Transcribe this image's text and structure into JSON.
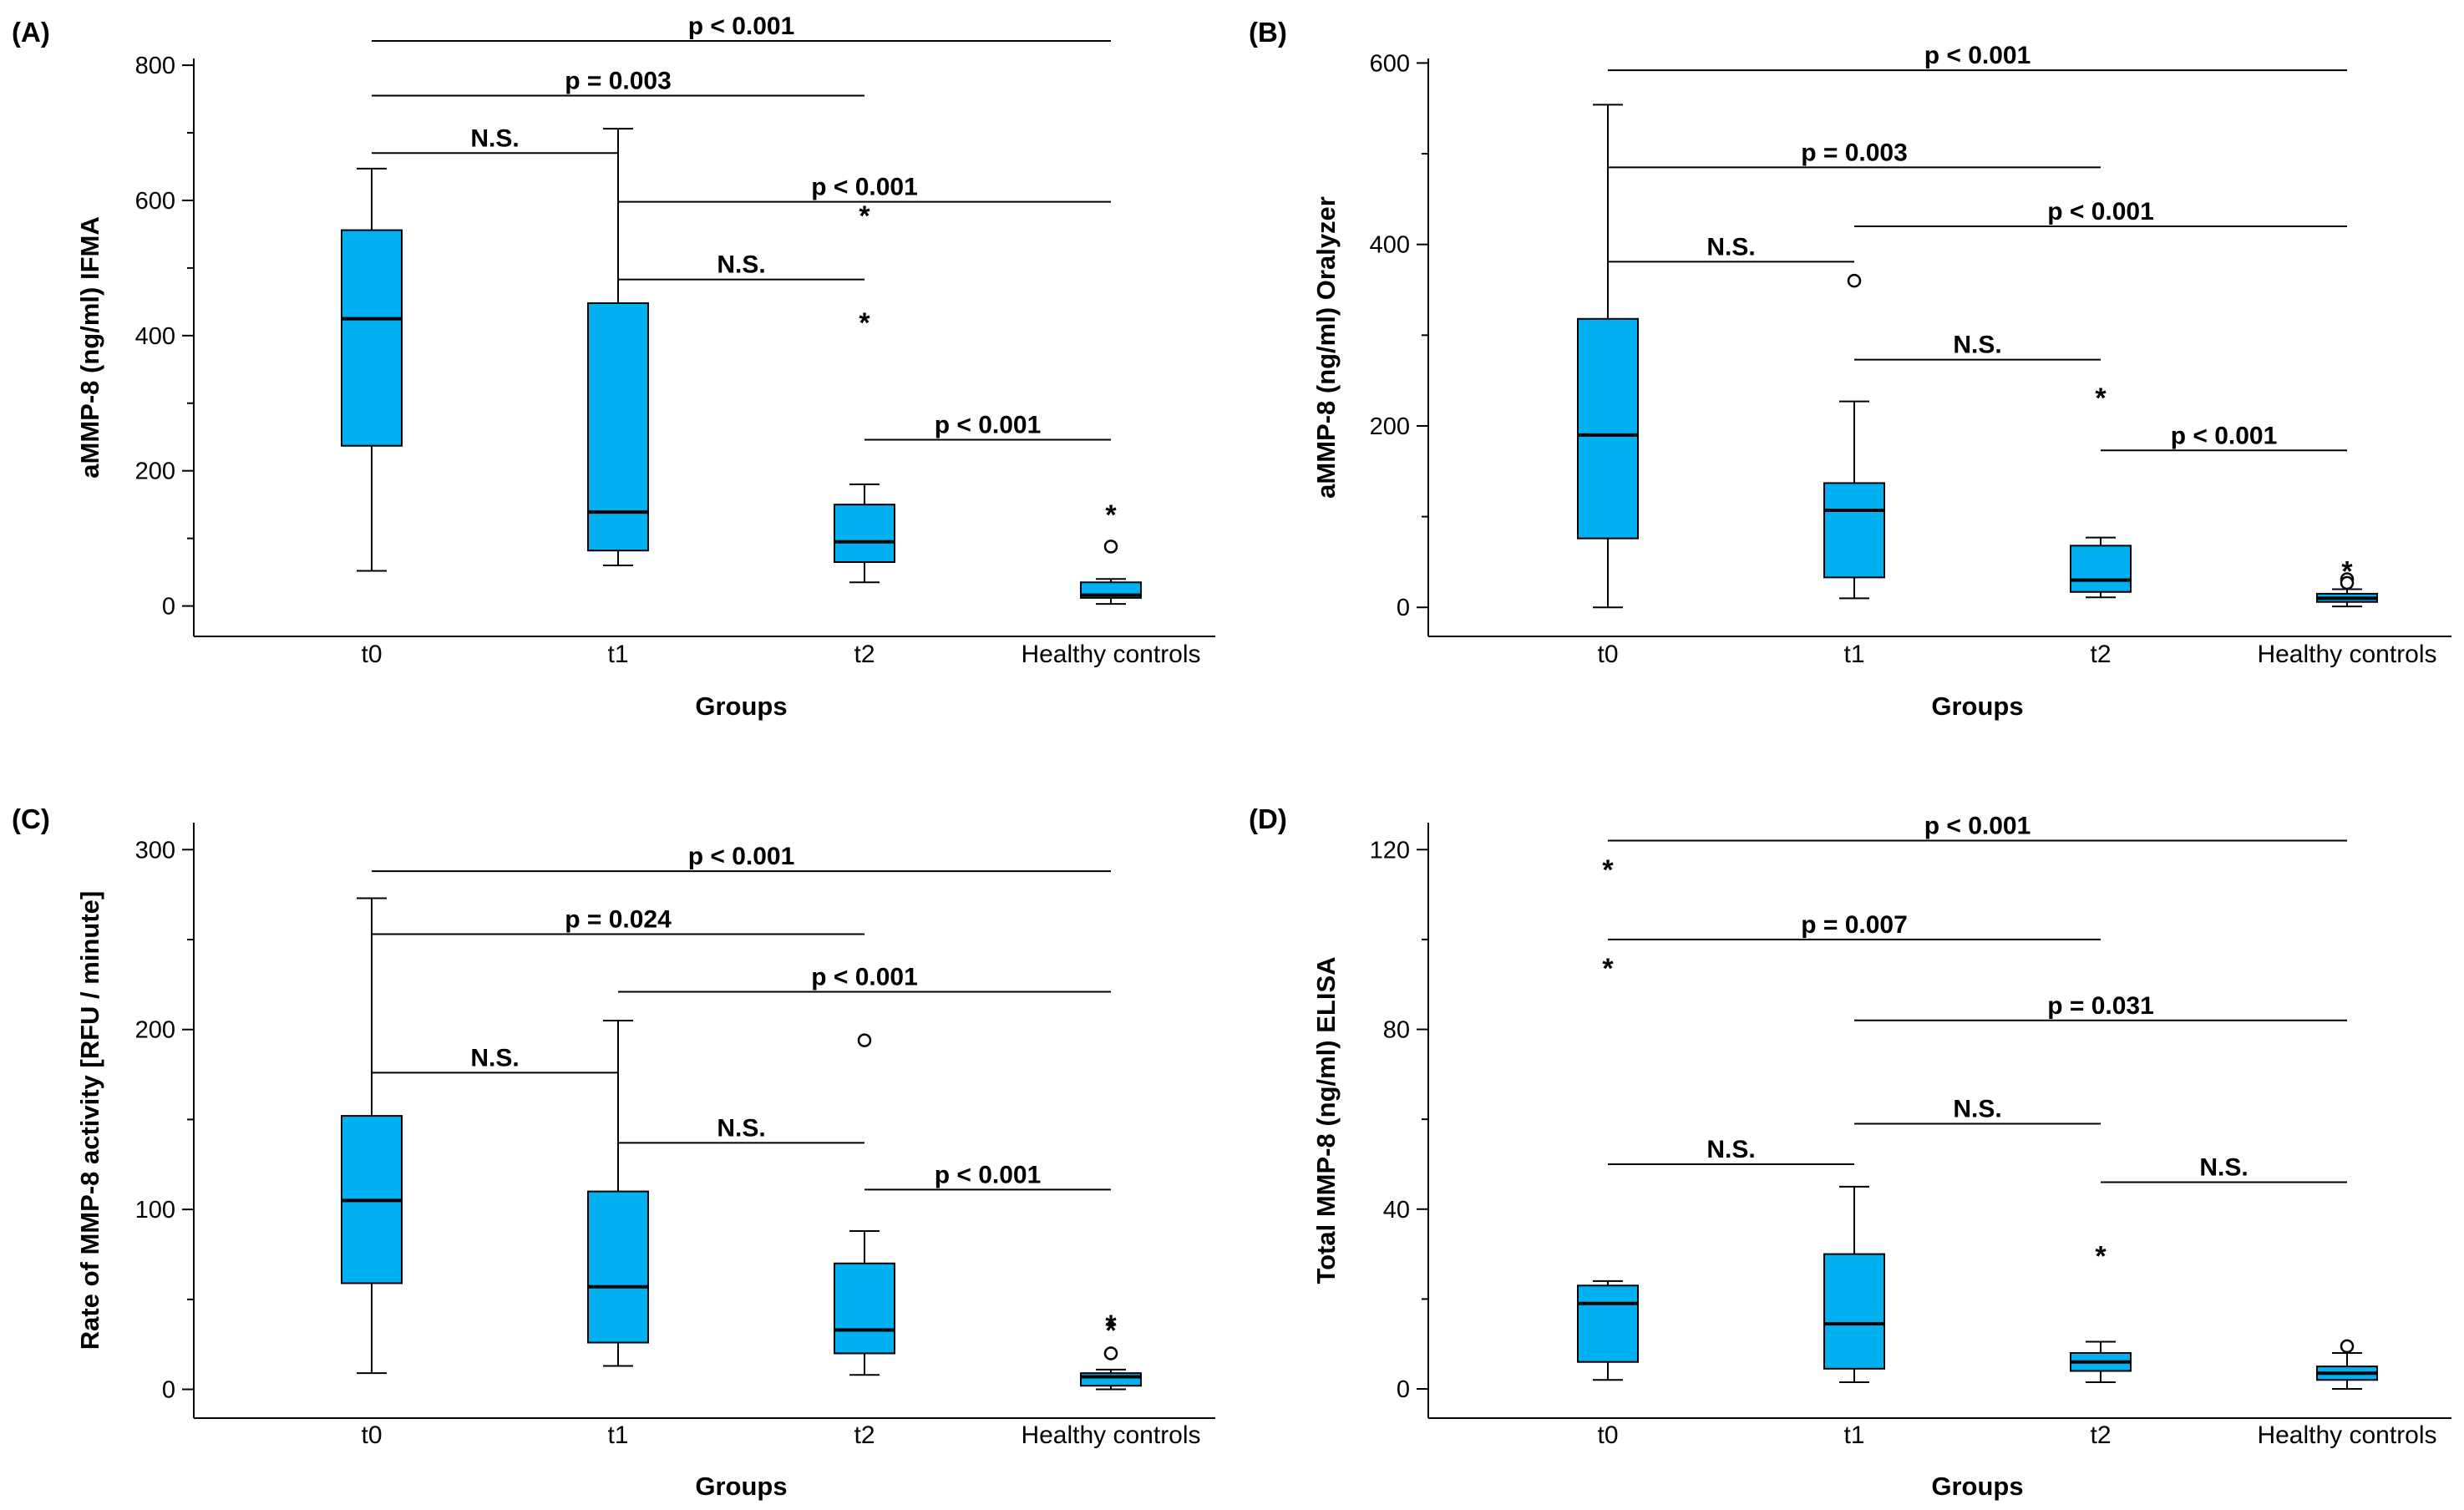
{
  "figure": {
    "box_color": "#00B0F0",
    "line_color": "#000000"
  },
  "chart_data": [
    {
      "type": "box",
      "panel_label": "(A)",
      "ylabel": "aMMP-8 (ng/ml) IFMA",
      "xlabel": "Groups",
      "categories": [
        "t0",
        "t1",
        "t2",
        "Healthy controls"
      ],
      "ylim": [
        -45,
        810
      ],
      "yticks": [
        0,
        200,
        400,
        600,
        800
      ],
      "minor_yticks": [
        100,
        300,
        500,
        700
      ],
      "boxes": [
        {
          "min": 52,
          "q1": 237,
          "median": 425,
          "q3": 556,
          "max": 647
        },
        {
          "min": 60,
          "q1": 82,
          "median": 139,
          "q3": 448,
          "max": 706
        },
        {
          "min": 35,
          "q1": 65,
          "median": 95,
          "q3": 150,
          "max": 180
        },
        {
          "min": 3,
          "q1": 12,
          "median": 16,
          "q3": 35,
          "max": 40
        }
      ],
      "outliers": [
        {
          "group": 2,
          "value": 580,
          "marker": "star"
        },
        {
          "group": 2,
          "value": 422,
          "marker": "star"
        },
        {
          "group": 3,
          "value": 138,
          "marker": "star"
        },
        {
          "group": 3,
          "value": 88,
          "marker": "circle"
        }
      ],
      "comparisons": [
        {
          "from": 0,
          "to": 3,
          "y": 836,
          "label": "p < 0.001"
        },
        {
          "from": 0,
          "to": 2,
          "y": 755,
          "label": "p = 0.003"
        },
        {
          "from": 0,
          "to": 1,
          "y": 670,
          "label": "N.S."
        },
        {
          "from": 1,
          "to": 3,
          "y": 598,
          "label": "p < 0.001"
        },
        {
          "from": 1,
          "to": 2,
          "y": 483,
          "label": "N.S."
        },
        {
          "from": 2,
          "to": 3,
          "y": 246,
          "label": "p < 0.001"
        }
      ]
    },
    {
      "type": "box",
      "panel_label": "(B)",
      "ylabel": "aMMP-8 (ng/ml) Oralyzer",
      "xlabel": "Groups",
      "categories": [
        "t0",
        "t1",
        "t2",
        "Healthy controls"
      ],
      "ylim": [
        -32,
        605
      ],
      "yticks": [
        0,
        200,
        400,
        600
      ],
      "minor_yticks": [
        100,
        300,
        500
      ],
      "boxes": [
        {
          "min": 0,
          "q1": 76,
          "median": 190,
          "q3": 318,
          "max": 554
        },
        {
          "min": 10,
          "q1": 33,
          "median": 107,
          "q3": 137,
          "max": 227
        },
        {
          "min": 11,
          "q1": 17,
          "median": 30,
          "q3": 68,
          "max": 77
        },
        {
          "min": 1,
          "q1": 6,
          "median": 10,
          "q3": 15,
          "max": 20
        }
      ],
      "outliers": [
        {
          "group": 1,
          "value": 360,
          "marker": "circle"
        },
        {
          "group": 2,
          "value": 233,
          "marker": "star"
        },
        {
          "group": 3,
          "value": 42,
          "marker": "star"
        },
        {
          "group": 3,
          "value": 31,
          "marker": "circle"
        },
        {
          "group": 3,
          "value": 27,
          "marker": "circle"
        }
      ],
      "comparisons": [
        {
          "from": 0,
          "to": 3,
          "y": 592,
          "label": "p < 0.001"
        },
        {
          "from": 0,
          "to": 2,
          "y": 485,
          "label": "p = 0.003"
        },
        {
          "from": 0,
          "to": 1,
          "y": 381,
          "label": "N.S."
        },
        {
          "from": 1,
          "to": 3,
          "y": 420,
          "label": "p < 0.001"
        },
        {
          "from": 1,
          "to": 2,
          "y": 273,
          "label": "N.S."
        },
        {
          "from": 2,
          "to": 3,
          "y": 173,
          "label": "p < 0.001"
        }
      ]
    },
    {
      "type": "box",
      "panel_label": "(C)",
      "ylabel": "Rate of MMP-8 activity [RFU / minute]",
      "xlabel": "Groups",
      "categories": [
        "t0",
        "t1",
        "t2",
        "Healthy controls"
      ],
      "ylim": [
        -16,
        315
      ],
      "yticks": [
        0,
        100,
        200,
        300
      ],
      "minor_yticks": [
        50,
        150,
        250
      ],
      "boxes": [
        {
          "min": 9,
          "q1": 59,
          "median": 105,
          "q3": 152,
          "max": 273
        },
        {
          "min": 13,
          "q1": 26,
          "median": 57,
          "q3": 110,
          "max": 205
        },
        {
          "min": 8,
          "q1": 20,
          "median": 33,
          "q3": 70,
          "max": 88
        },
        {
          "min": 0,
          "q1": 2,
          "median": 7,
          "q3": 9,
          "max": 11
        }
      ],
      "outliers": [
        {
          "group": 2,
          "value": 194,
          "marker": "circle"
        },
        {
          "group": 3,
          "value": 37,
          "marker": "star"
        },
        {
          "group": 3,
          "value": 34,
          "marker": "star"
        },
        {
          "group": 3,
          "value": 20,
          "marker": "circle"
        }
      ],
      "comparisons": [
        {
          "from": 0,
          "to": 3,
          "y": 288,
          "label": "p < 0.001"
        },
        {
          "from": 0,
          "to": 2,
          "y": 253,
          "label": "p = 0.024"
        },
        {
          "from": 0,
          "to": 1,
          "y": 176,
          "label": "N.S."
        },
        {
          "from": 1,
          "to": 3,
          "y": 221,
          "label": "p < 0.001"
        },
        {
          "from": 1,
          "to": 2,
          "y": 137,
          "label": "N.S."
        },
        {
          "from": 2,
          "to": 3,
          "y": 111,
          "label": "p < 0.001"
        }
      ]
    },
    {
      "type": "box",
      "panel_label": "(D)",
      "ylabel": "Total MMP-8 (ng/ml) ELISA",
      "xlabel": "Groups",
      "categories": [
        "t0",
        "t1",
        "t2",
        "Healthy controls"
      ],
      "ylim": [
        -6.5,
        126
      ],
      "yticks": [
        0,
        40,
        80,
        120
      ],
      "minor_yticks": [
        20,
        60,
        100
      ],
      "boxes": [
        {
          "min": 2,
          "q1": 6,
          "median": 19,
          "q3": 23,
          "max": 24
        },
        {
          "min": 1.5,
          "q1": 4.5,
          "median": 14.5,
          "q3": 30,
          "max": 45
        },
        {
          "min": 1.5,
          "q1": 4,
          "median": 6,
          "q3": 8,
          "max": 10.5
        },
        {
          "min": 0,
          "q1": 2,
          "median": 3.5,
          "q3": 5,
          "max": 8
        }
      ],
      "outliers": [
        {
          "group": 0,
          "value": 116,
          "marker": "star"
        },
        {
          "group": 0,
          "value": 94,
          "marker": "star"
        },
        {
          "group": 2,
          "value": 30,
          "marker": "star"
        },
        {
          "group": 3,
          "value": 9.5,
          "marker": "circle"
        }
      ],
      "comparisons": [
        {
          "from": 0,
          "to": 3,
          "y": 122,
          "label": "p < 0.001"
        },
        {
          "from": 0,
          "to": 2,
          "y": 100,
          "label": "p = 0.007"
        },
        {
          "from": 0,
          "to": 1,
          "y": 50,
          "label": "N.S."
        },
        {
          "from": 1,
          "to": 3,
          "y": 82,
          "label": "p = 0.031"
        },
        {
          "from": 1,
          "to": 2,
          "y": 59,
          "label": "N.S."
        },
        {
          "from": 2,
          "to": 3,
          "y": 46,
          "label": "N.S."
        }
      ]
    }
  ]
}
